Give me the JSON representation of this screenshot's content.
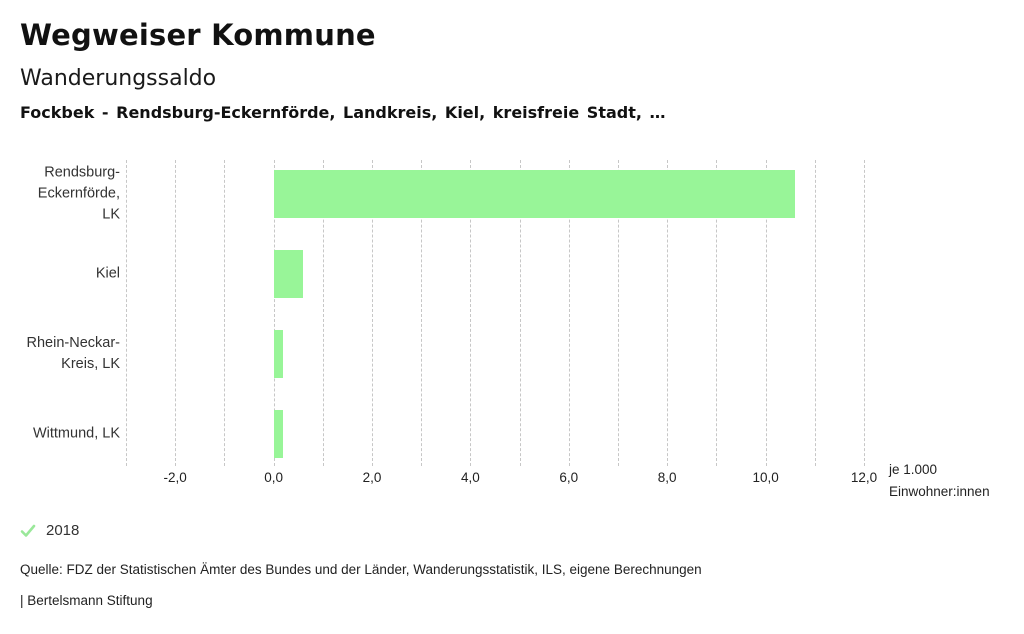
{
  "header": {
    "app_title": "Wegweiser Kommune",
    "chart_title": "Wanderungssaldo",
    "selection_line": "Fockbek - Rendsburg-Eckernförde, Landkreis, Kiel, kreisfreie Stadt, …"
  },
  "chart_data": {
    "type": "bar",
    "orientation": "horizontal",
    "title": "Wanderungssaldo",
    "categories": [
      "Rendsburg-Eckernförde, LK",
      "Kiel",
      "Rhein-Neckar-Kreis, LK",
      "Wittmund, LK"
    ],
    "category_label_lines": [
      [
        "Rendsburg-",
        "Eckernförde,",
        "LK"
      ],
      [
        "Kiel"
      ],
      [
        "Rhein-Neckar-",
        "Kreis, LK"
      ],
      [
        "Wittmund, LK"
      ]
    ],
    "series": [
      {
        "name": "2018",
        "values": [
          10.6,
          0.6,
          0.2,
          0.2
        ]
      }
    ],
    "xlabel_lines": [
      "je 1.000",
      "Einwohner:innen"
    ],
    "xlim": [
      -3,
      12.3
    ],
    "gridline_step": 1,
    "grid": true,
    "x_ticks": [
      {
        "value": -2,
        "label": "-2,0"
      },
      {
        "value": 0,
        "label": "0,0"
      },
      {
        "value": 2,
        "label": "2,0"
      },
      {
        "value": 4,
        "label": "4,0"
      },
      {
        "value": 6,
        "label": "6,0"
      },
      {
        "value": 8,
        "label": "8,0"
      },
      {
        "value": 10,
        "label": "10,0"
      },
      {
        "value": 12,
        "label": "12,0"
      }
    ],
    "legend_position": "bottom-left",
    "colors": {
      "bar": "#98f598",
      "grid": "#c7c7c7",
      "legend_check": "#9ae89a",
      "text": "#333333"
    }
  },
  "legend": {
    "items": [
      {
        "marker": "check-icon",
        "label": "2018"
      }
    ]
  },
  "footer": {
    "source": "Quelle: FDZ der Statistischen Ämter des Bundes und der Länder, Wanderungsstatistik, ILS, eigene Berechnungen",
    "attribution": "| Bertelsmann Stiftung"
  }
}
